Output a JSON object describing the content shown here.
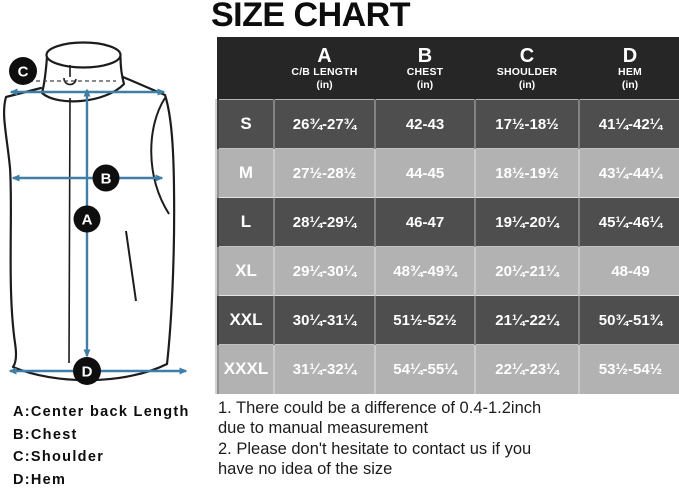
{
  "title": "SIZE CHART",
  "chart_data": {
    "type": "table",
    "title": "SIZE CHART",
    "columns": [
      {
        "key": "A",
        "label": "C/B LENGTH",
        "unit": "(in)"
      },
      {
        "key": "B",
        "label": "CHEST",
        "unit": "(in)"
      },
      {
        "key": "C",
        "label": "SHOULDER",
        "unit": "(in)"
      },
      {
        "key": "D",
        "label": "HEM",
        "unit": "(in)"
      }
    ],
    "sizes": [
      "S",
      "M",
      "L",
      "XL",
      "XXL",
      "XXXL"
    ],
    "rows": [
      [
        "26¾-27¾",
        "42-43",
        "17½-18½",
        "41¼-42¼"
      ],
      [
        "27½-28½",
        "44-45",
        "18½-19½",
        "43¼-44¼"
      ],
      [
        "28¼-29¼",
        "46-47",
        "19¼-20¼",
        "45¼-46¼"
      ],
      [
        "29¼-30¼",
        "48¾-49¾",
        "20¼-21¼",
        "48-49"
      ],
      [
        "30¼-31¼",
        "51½-52½",
        "21¼-22¼",
        "50¾-51¾"
      ],
      [
        "31¼-32¼",
        "54¼-55¼",
        "22¼-23¼",
        "53½-54½"
      ]
    ]
  },
  "diagram": {
    "markers": [
      "A",
      "B",
      "C",
      "D"
    ]
  },
  "legend_lines": [
    "A:Center back Length",
    "B:Chest",
    "C:Shoulder",
    "D:Hem"
  ],
  "notes_lines": [
    "1. There could be a difference of 0.4-1.2inch",
    "due to manual measurement",
    "2. Please don't hesitate to contact us if you",
    "have no idea of the size"
  ],
  "colors": {
    "header_bg": "#262626",
    "row_dark": "#4e4e4e",
    "row_light": "#b2b2b2",
    "arrow": "#3f7fa6",
    "outline": "#1c1c1c",
    "marker_bg": "#0e0e0e",
    "text_light": "#ffffff",
    "text_dark": "#111111"
  }
}
